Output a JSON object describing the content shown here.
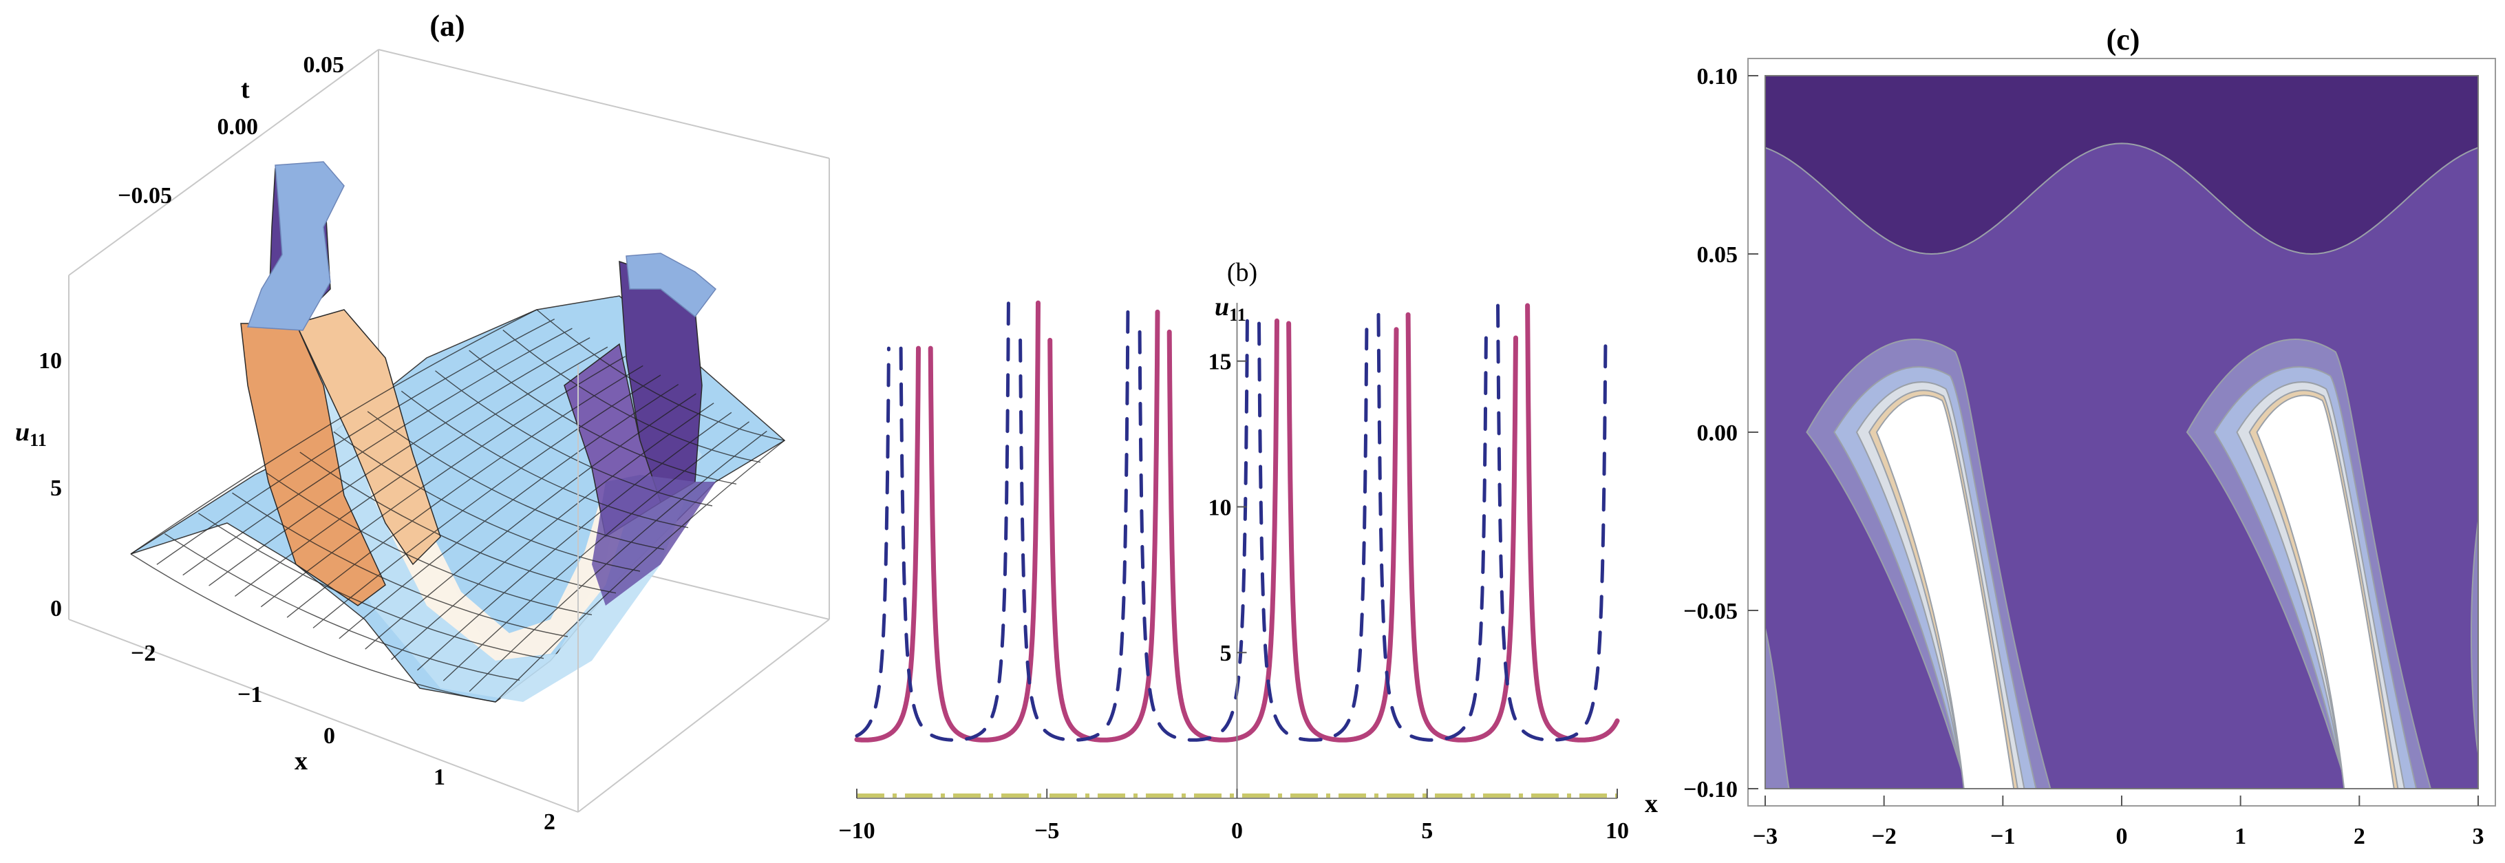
{
  "chart_data": [
    {
      "type": "surface",
      "title": "(a)",
      "xlabel": "x",
      "ylabel": "t",
      "zlabel": "u11",
      "zlabel_main": "u",
      "zlabel_sub": "11",
      "x_ticks": [
        "−2",
        "−1",
        "0",
        "1",
        "2"
      ],
      "t_ticks": [
        "0.05",
        "0.00",
        "−0.05"
      ],
      "z_ticks": [
        "10",
        "5",
        "0"
      ],
      "xlim": [
        -2,
        2
      ],
      "tlim": [
        -0.1,
        0.1
      ],
      "zlim": [
        0,
        13
      ],
      "colors": {
        "low": "#a9d4f2",
        "mid": "#fdf3e7",
        "high": "#5b3f94",
        "warm": "#e8a06a",
        "cap": "#8fb0e0",
        "frame": "#c8c8c8"
      }
    },
    {
      "type": "line",
      "title": "(b)",
      "xlabel": "x",
      "ylabel": "u11",
      "ylabel_main": "u",
      "ylabel_sub": "11",
      "xlim": [
        -10,
        10
      ],
      "ylim": [
        0,
        17
      ],
      "x_ticks": [
        "−10",
        "−5",
        "0",
        "5",
        "10"
      ],
      "y_ticks": [
        "5",
        "10",
        "15"
      ],
      "x_tick_values": [
        -10,
        -5,
        0,
        5,
        10
      ],
      "y_tick_values": [
        5,
        10,
        15
      ],
      "period": 3.14159,
      "series": [
        {
          "style": "solid",
          "color": "#b4407a",
          "singularities": [
            -8.22,
            -5.08,
            -1.94,
            1.2,
            4.34,
            7.48
          ],
          "min_value": 2.0
        },
        {
          "style": "dashed",
          "color": "#2a2f8a",
          "singularities": [
            -9.0,
            -5.86,
            -2.72,
            0.42,
            3.56,
            6.7
          ],
          "min_value": 2.0
        },
        {
          "style": "dash-dot",
          "color": "#c9c86a",
          "constant_value": 0.0
        }
      ]
    },
    {
      "type": "contour",
      "title": "(c)",
      "xlim": [
        -3,
        3
      ],
      "ylim": [
        -0.1,
        0.1
      ],
      "x_ticks": [
        "−3",
        "−2",
        "−1",
        "0",
        "1",
        "2",
        "3"
      ],
      "y_ticks": [
        "0.10",
        "0.05",
        "0.00",
        "−0.05",
        "−0.10"
      ],
      "x_tick_values": [
        -3,
        -2,
        -1,
        0,
        1,
        2,
        3
      ],
      "y_tick_values": [
        0.1,
        0.05,
        0.0,
        -0.05,
        -0.1
      ],
      "colors": {
        "level0": "#4b2a7a",
        "level1": "#684aa0",
        "level2": "#8c84c0",
        "level3": "#a9b8e0",
        "level4": "#dadfe6",
        "level5": "#ffffff",
        "edge": "#9aa0a8",
        "tan": "#e6cfae"
      },
      "band_centers": [
        -1.6,
        1.6
      ],
      "ridge_t": 0.081,
      "trough_t": 0.05
    }
  ]
}
